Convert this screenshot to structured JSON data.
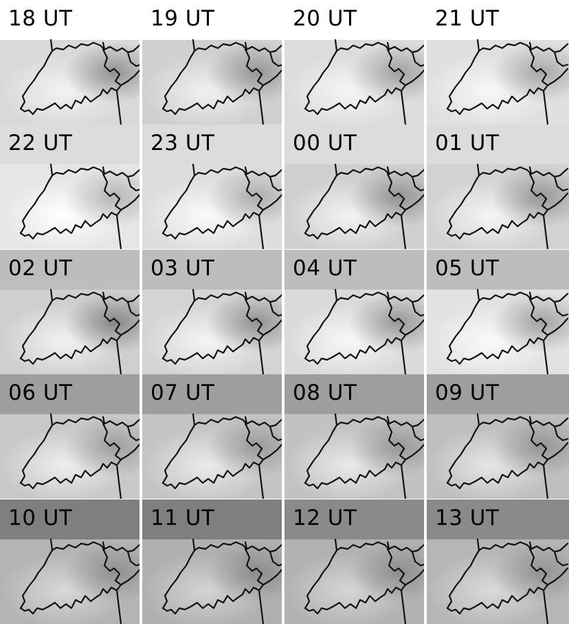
{
  "panels": [
    {
      "label": "18 UT"
    },
    {
      "label": "19 UT"
    },
    {
      "label": "20 UT"
    },
    {
      "label": "21 UT"
    },
    {
      "label": "22 UT"
    },
    {
      "label": "23 UT"
    },
    {
      "label": "00 UT"
    },
    {
      "label": "01 UT"
    },
    {
      "label": "02 UT"
    },
    {
      "label": "03 UT"
    },
    {
      "label": "04 UT"
    },
    {
      "label": "05 UT"
    },
    {
      "label": "06 UT"
    },
    {
      "label": "07 UT"
    },
    {
      "label": "08 UT"
    },
    {
      "label": "09 UT"
    },
    {
      "label": "10 UT"
    },
    {
      "label": "11 UT"
    },
    {
      "label": "12 UT"
    },
    {
      "label": "13 UT"
    }
  ],
  "colors": {
    "border_lines": "#111111",
    "label_text": "#000000"
  }
}
